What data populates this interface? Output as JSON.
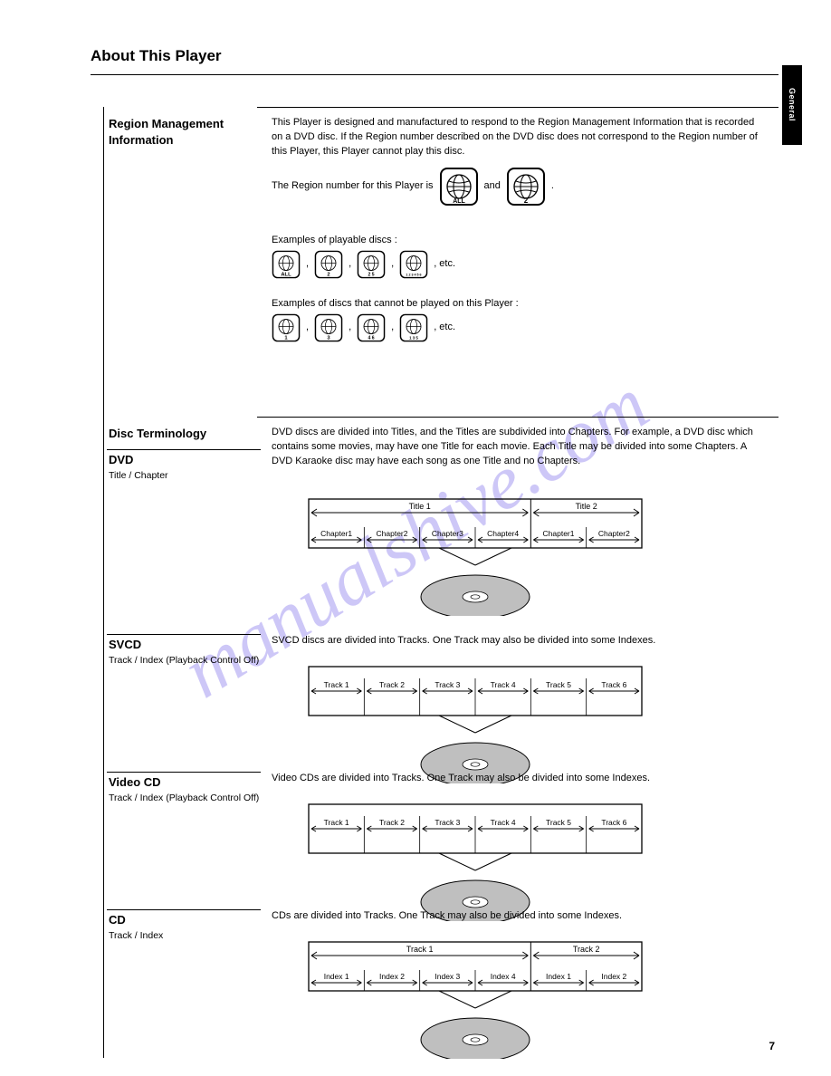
{
  "page": {
    "title": "About This Player",
    "side_tab": "General",
    "page_number": "7"
  },
  "region": {
    "heading": "Region Management Information",
    "body_html": "This Player is designed and manufactured to respond to the Region Management Information that is recorded on a DVD disc. If the Region number described on the DVD disc does not correspond to the Region number of this Player, this Player cannot play this disc.",
    "line2_prefix": "The Region number for this Player is ",
    "icons_middle": " and ",
    "line2_suffix": ".",
    "icon_all": "ALL",
    "icon_num": "2",
    "examples_intro": "Examples of playable discs :",
    "examples_row": "              ,               ,               ,               ,  etc.",
    "not_intro": "Examples of discs that cannot be played on this Player :",
    "not_row": "              ,               ,               ,               ,  etc.",
    "ex_labels": [
      "ALL",
      "2",
      "2 5",
      "1 2 3 4 5 6"
    ],
    "not_labels": [
      "1",
      "3",
      "4 6",
      "1 3 5"
    ]
  },
  "disc_section": {
    "heading": "Disc Terminology",
    "dvd": {
      "name": "DVD",
      "sub": "Title / Chapter"
    },
    "dvd_text": "DVD discs are divided into Titles, and the Titles are subdivided into Chapters. For example, a DVD disc which contains some movies, may have one Title for each movie. Each Title may be divided into some Chapters. A DVD Karaoke disc may have each song as one Title and no Chapters.",
    "svcd": {
      "name": "SVCD",
      "sub": "Track / Index (Playback Control Off)"
    },
    "svcd_text": "SVCD discs are divided into Tracks. One Track may also be divided into some Indexes.",
    "vcd": {
      "name": "Video CD",
      "sub": "Track / Index (Playback Control Off)"
    },
    "vcd_text": "Video CDs are divided into Tracks. One Track may also be divided into some Indexes.",
    "cd": {
      "name": "CD",
      "sub": "Track / Index"
    },
    "cd_text": "CDs are divided into Tracks. One Track may also be divided into some Indexes."
  },
  "watermark": "manualshive.com",
  "diagrams": {
    "dvd": {
      "titles": [
        "Title 1",
        "Title 2"
      ],
      "segments": [
        "Chapter1",
        "Chapter2",
        "Chapter3",
        "Chapter4",
        "Chapter1",
        "Chapter2"
      ],
      "title_split": 4,
      "disc_color": "#bfbfbf",
      "line_color": "#000000",
      "label_fontsize": 9
    },
    "svcd": {
      "segments": [
        "Track 1",
        "Track 2",
        "Track 3",
        "Track 4",
        "Track 5",
        "Track 6"
      ],
      "disc_color": "#bfbfbf",
      "line_color": "#000000",
      "label_fontsize": 9
    },
    "vcd": {
      "segments": [
        "Track 1",
        "Track 2",
        "Track 3",
        "Track 4",
        "Track 5",
        "Track 6"
      ],
      "disc_color": "#bfbfbf",
      "line_color": "#000000",
      "label_fontsize": 9
    },
    "cd": {
      "titles": [
        "Track 1",
        "Track 2"
      ],
      "segments": [
        "Index 1",
        "Index 2",
        "Index 3",
        "Index 4",
        "Index 1",
        "Index 2"
      ],
      "title_split": 4,
      "disc_color": "#bfbfbf",
      "line_color": "#000000",
      "label_fontsize": 9
    }
  }
}
